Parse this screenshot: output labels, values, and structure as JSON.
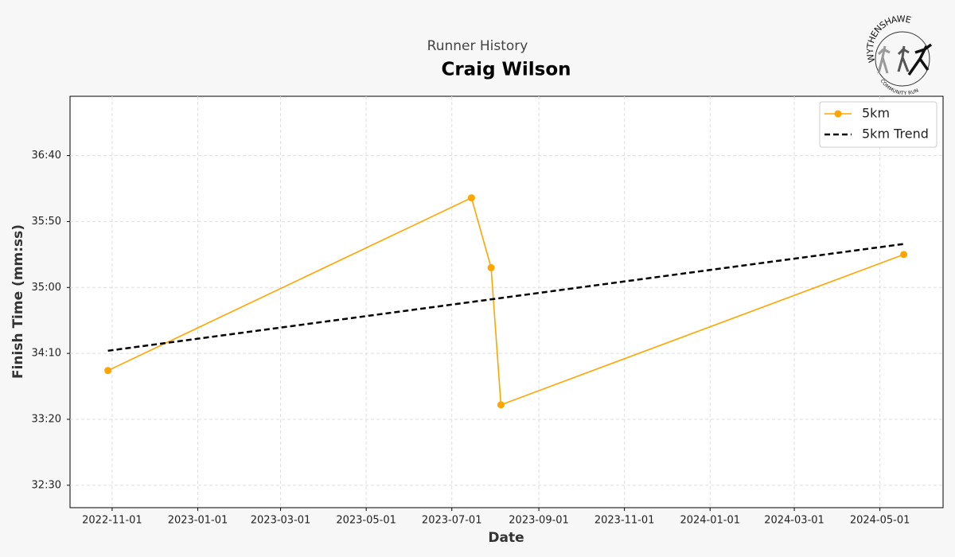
{
  "chart_data": {
    "type": "line",
    "subtitle": "Runner History",
    "title": "Craig Wilson",
    "x_label": "Date",
    "y_label": "Finish Time (mm:ss)",
    "series": [
      {
        "name": "5km",
        "color": "#ffa500",
        "marker": "circle",
        "linestyle": "solid",
        "x": [
          "2022-10-29",
          "2023-07-15",
          "2023-07-29",
          "2023-08-05",
          "2024-05-18"
        ],
        "values": [
          2037,
          2168,
          2115,
          2011,
          2125
        ]
      },
      {
        "name": "5km Trend",
        "color": "#000000",
        "marker": "none",
        "linestyle": "dashed",
        "x": [
          "2022-10-29",
          "2024-05-18"
        ],
        "values": [
          2052,
          2133
        ]
      }
    ],
    "xlim": [
      "2022-10-02",
      "2024-06-15"
    ],
    "xticks": [
      "2022-11-01",
      "2023-01-01",
      "2023-03-01",
      "2023-05-01",
      "2023-07-01",
      "2023-09-01",
      "2023-11-01",
      "2024-01-01",
      "2024-03-01",
      "2024-05-01"
    ],
    "ylim": [
      1933,
      2245
    ],
    "yticks": [
      {
        "value": 1950,
        "label": "32:30"
      },
      {
        "value": 2000,
        "label": "33:20"
      },
      {
        "value": 2050,
        "label": "34:10"
      },
      {
        "value": 2100,
        "label": "35:00"
      },
      {
        "value": 2150,
        "label": "35:50"
      },
      {
        "value": 2200,
        "label": "36:40"
      }
    ],
    "grid": true,
    "legend": "upper right"
  },
  "logo": {
    "top": "WYTHENSHAWE",
    "bottom": "COMMUNITY RUN"
  }
}
